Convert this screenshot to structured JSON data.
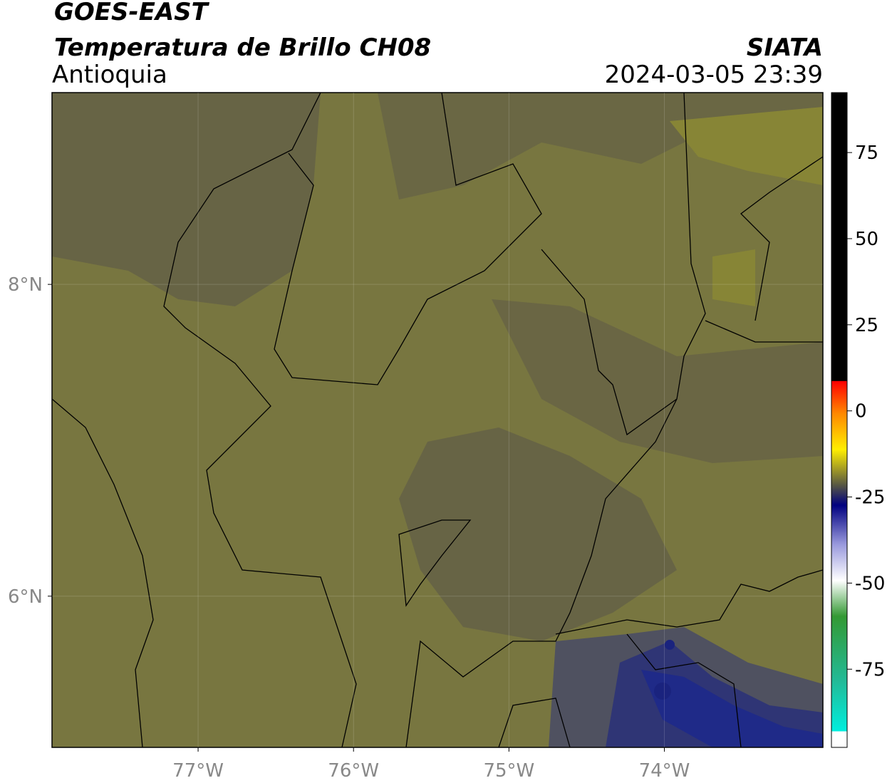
{
  "title": "GOES-EAST",
  "subtitle": "Temperatura de Brillo CH08",
  "region": "Antioquia",
  "source": "SIATA",
  "datetime": "2024-03-05 23:39",
  "map": {
    "xlim": [
      -77.94,
      -72.98
    ],
    "ylim": [
      5.03,
      9.23
    ],
    "xticks": [
      {
        "value": -77,
        "label": "77°W"
      },
      {
        "value": -76,
        "label": "76°W"
      },
      {
        "value": -75,
        "label": "75°W"
      },
      {
        "value": -74,
        "label": "74°W"
      }
    ],
    "yticks": [
      {
        "value": 8,
        "label": "8°N"
      },
      {
        "value": 6,
        "label": "6°N"
      }
    ]
  },
  "colorbar": {
    "lim": [
      -97.7,
      92.4
    ],
    "ticks": [
      75,
      50,
      25,
      0,
      -25,
      -50,
      -75
    ]
  }
}
